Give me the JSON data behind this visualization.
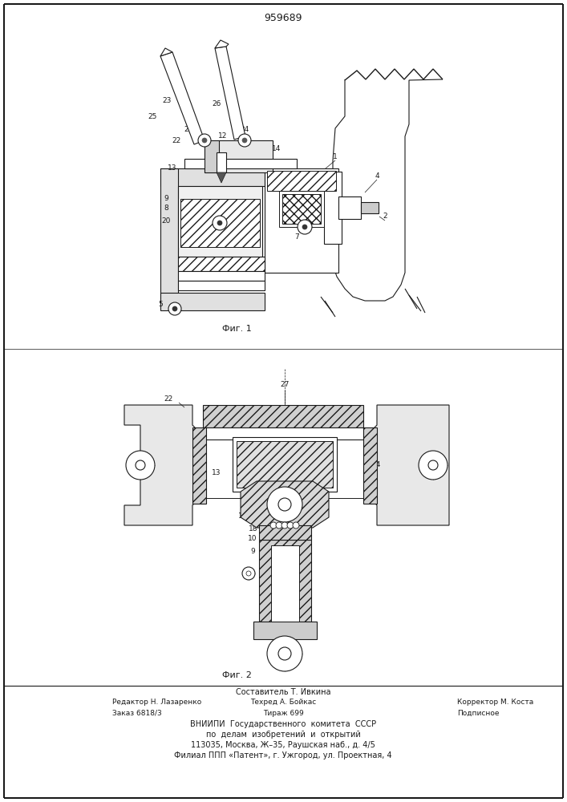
{
  "title": "959689",
  "fig1_label": "Фиг. 1",
  "fig2_label": "Фиг. 2",
  "footer_line0": "Составитель Т. Ивкина",
  "footer_line1_left": "Редактор Н. Лазаренко",
  "footer_line1_mid": "Техред А. Бойкас",
  "footer_line1_right": "Корректор М. Коста",
  "footer_line2_left": "Заказ 6818/3",
  "footer_line2_mid": "Тираж 699",
  "footer_line2_right": "Подписное",
  "footer_line3": "ВНИИПИ  Государственного  комитета  СССР",
  "footer_line4": "по  делам  изобретений  и  открытий",
  "footer_line5": "113035, Москва, Ж–35, Раушская наб., д. 4/5",
  "footer_line6": "Филиал ППП «Патент», г. Ужгород, ул. Проектная, 4",
  "bg_color": "#ffffff",
  "line_color": "#1a1a1a"
}
